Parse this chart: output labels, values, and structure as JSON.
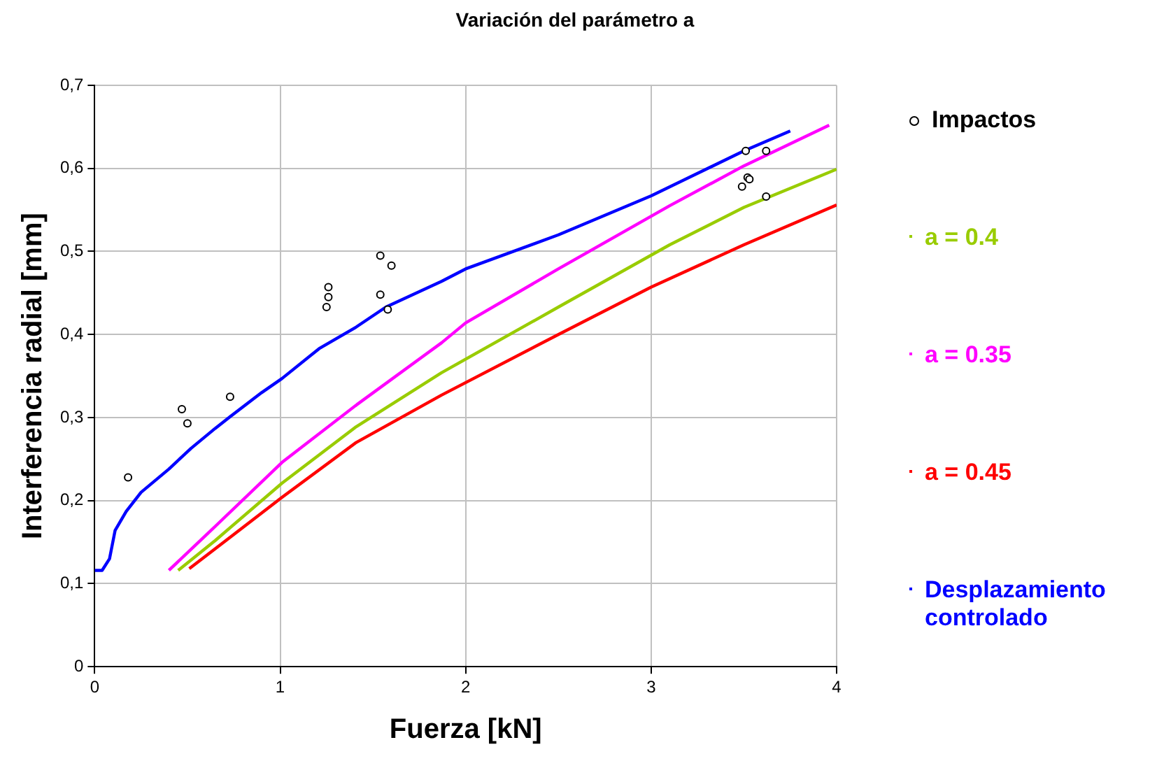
{
  "chart_data": {
    "type": "line",
    "title": "Variación del parámetro a",
    "xlabel": "Fuerza [kN]",
    "ylabel": "Interferencia radial [mm]",
    "xlim": [
      0,
      4
    ],
    "xticks": [
      0,
      1,
      2,
      3,
      4
    ],
    "ylim": [
      0,
      0.7
    ],
    "yticks": [
      {
        "value": 0,
        "label": "0"
      },
      {
        "value": 0.1,
        "label": "0,1"
      },
      {
        "value": 0.2,
        "label": "0,2"
      },
      {
        "value": 0.3,
        "label": "0,3"
      },
      {
        "value": 0.4,
        "label": "0,4"
      },
      {
        "value": 0.5,
        "label": "0,5"
      },
      {
        "value": 0.6,
        "label": "0,6"
      },
      {
        "value": 0.7,
        "label": "0,7"
      }
    ],
    "grid": true,
    "legend": "right",
    "marker": "none",
    "line_style": "solid",
    "series": [
      {
        "name": "Impactos",
        "type": "scatter",
        "marker": "circle",
        "color": "#000000",
        "x": [
          0.18,
          0.47,
          0.5,
          0.73,
          1.25,
          1.26,
          1.26,
          1.54,
          1.54,
          1.6,
          1.58,
          3.51,
          3.62,
          3.52,
          3.53,
          3.49,
          3.62
        ],
        "values": [
          0.228,
          0.31,
          0.293,
          0.325,
          0.433,
          0.445,
          0.457,
          0.448,
          0.495,
          0.483,
          0.43,
          0.621,
          0.621,
          0.589,
          0.587,
          0.578,
          0.566
        ]
      },
      {
        "name": "a = 0.4",
        "color": "#99cc00",
        "x": [
          0.45,
          0.65,
          1.01,
          1.41,
          1.87,
          2.5,
          3.1,
          3.5,
          4.0
        ],
        "values": [
          0.116,
          0.152,
          0.221,
          0.289,
          0.354,
          0.433,
          0.508,
          0.553,
          0.599
        ]
      },
      {
        "name": "a = 0.35",
        "color": "#ff00ff",
        "x": [
          0.4,
          0.65,
          1.01,
          1.41,
          1.87,
          2.0,
          2.5,
          3.1,
          3.5,
          3.96
        ],
        "values": [
          0.116,
          0.169,
          0.246,
          0.315,
          0.39,
          0.414,
          0.479,
          0.555,
          0.603,
          0.652
        ]
      },
      {
        "name": "a = 0.45",
        "color": "#ff0000",
        "x": [
          0.51,
          0.65,
          1.01,
          1.41,
          1.87,
          2.5,
          3.0,
          3.5,
          4.0
        ],
        "values": [
          0.118,
          0.142,
          0.204,
          0.27,
          0.327,
          0.4,
          0.457,
          0.508,
          0.556
        ]
      },
      {
        "name": "Desplazamiento controlado",
        "color": "#0000ff",
        "x": [
          0,
          0.04,
          0.08,
          0.11,
          0.17,
          0.25,
          0.4,
          0.52,
          0.65,
          0.73,
          0.9,
          1.01,
          1.21,
          1.41,
          1.57,
          1.87,
          2.0,
          2.5,
          3.0,
          3.5,
          3.75
        ],
        "values": [
          0.116,
          0.116,
          0.13,
          0.164,
          0.187,
          0.21,
          0.238,
          0.263,
          0.287,
          0.301,
          0.33,
          0.347,
          0.383,
          0.409,
          0.433,
          0.464,
          0.479,
          0.52,
          0.567,
          0.621,
          0.645
        ]
      }
    ]
  }
}
